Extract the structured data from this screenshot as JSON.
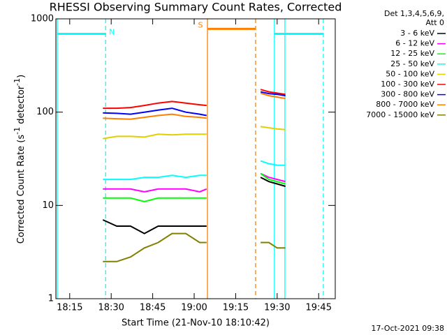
{
  "chart_data": {
    "type": "line",
    "title": "RHESSI Observing Summary Count Rates, Corrected",
    "x_label": "Start Time (21-Nov-10 18:10:42)",
    "y_label": [
      "Corrected Count Rate (s",
      "-1",
      " detector",
      "-1",
      ")"
    ],
    "legend_header": [
      "Det 1,3,4,5,6,9,",
      "Att 0"
    ],
    "timestamp": "17-Oct-2021 09:38",
    "log_y": true,
    "xlim": [
      1090,
      1191
    ],
    "ylim": [
      1,
      1000
    ],
    "xticks": [
      {
        "value": 1095,
        "label": "18:15"
      },
      {
        "value": 1110,
        "label": "18:30"
      },
      {
        "value": 1125,
        "label": "18:45"
      },
      {
        "value": 1140,
        "label": "19:00"
      },
      {
        "value": 1155,
        "label": "19:15"
      },
      {
        "value": 1170,
        "label": "19:30"
      },
      {
        "value": 1185,
        "label": "19:45"
      }
    ],
    "yticks": [
      1,
      10,
      100,
      1000
    ],
    "x": [
      1107,
      1112,
      1117,
      1122,
      1127,
      1132,
      1137,
      1142,
      1144.5,
      1154,
      1164,
      1167,
      1170,
      1173
    ],
    "series": [
      {
        "name": "3 - 6 keV",
        "color": "#000000",
        "values": [
          7,
          6,
          6,
          5,
          6,
          6,
          6,
          6,
          6,
          null,
          20,
          18,
          17,
          16
        ]
      },
      {
        "name": "6 - 12 keV",
        "color": "#ff00ff",
        "values": [
          15,
          15,
          15,
          14,
          15,
          15,
          15,
          14,
          15,
          null,
          22,
          20,
          19,
          18
        ]
      },
      {
        "name": "12 - 25 keV",
        "color": "#00ff00",
        "values": [
          12,
          12,
          12,
          11,
          12,
          12,
          12,
          12,
          12,
          null,
          22,
          19,
          18,
          17
        ]
      },
      {
        "name": "25 - 50 keV",
        "color": "#00ffff",
        "values": [
          19,
          19,
          19,
          20,
          20,
          21,
          20,
          21,
          21,
          null,
          30,
          28,
          27,
          27
        ]
      },
      {
        "name": "50 - 100 keV",
        "color": "#e0d000",
        "values": [
          52,
          55,
          55,
          54,
          58,
          57,
          58,
          58,
          58,
          null,
          70,
          68,
          66,
          65
        ]
      },
      {
        "name": "100 - 300 keV",
        "color": "#ff0000",
        "values": [
          110,
          110,
          112,
          118,
          125,
          130,
          125,
          120,
          118,
          null,
          175,
          165,
          160,
          155
        ]
      },
      {
        "name": "300 - 800 keV",
        "color": "#0000ff",
        "values": [
          98,
          97,
          95,
          100,
          105,
          110,
          100,
          95,
          92,
          null,
          165,
          158,
          155,
          150
        ]
      },
      {
        "name": "800 - 7000 keV",
        "color": "#ff8000",
        "values": [
          86,
          85,
          84,
          88,
          92,
          95,
          90,
          88,
          86,
          null,
          160,
          150,
          145,
          140
        ]
      },
      {
        "name": "7000 - 15000 keV",
        "color": "#808000",
        "values": [
          2.5,
          2.5,
          2.8,
          3.5,
          4,
          5,
          5,
          4,
          4,
          null,
          4,
          4,
          3.5,
          3.5
        ]
      }
    ],
    "markers": [
      {
        "x": 1090.5,
        "color": "#00ffff",
        "dashed": false
      },
      {
        "x": 1108,
        "color": "#00ffff",
        "dashed": true
      },
      {
        "x": 1144.8,
        "color": "#ff8000",
        "dashed": false
      },
      {
        "x": 1162.2,
        "color": "#ff8000",
        "dashed": true
      },
      {
        "x": 1169,
        "color": "#00ffff",
        "dashed": false
      },
      {
        "x": 1172.8,
        "color": "#00ffff",
        "dashed": false
      },
      {
        "x": 1186.7,
        "color": "#00ffff",
        "dashed": true
      }
    ],
    "flags": [
      {
        "label": "N",
        "start": 1090.5,
        "end": 1108,
        "level": 690,
        "color": "#00ffff"
      },
      {
        "label": "S",
        "start": 1144.8,
        "end": 1162.2,
        "level": 780,
        "color": "#ff8000"
      },
      {
        "start": 1169,
        "end": 1186.7,
        "level": 690,
        "color": "#00ffff"
      }
    ]
  }
}
